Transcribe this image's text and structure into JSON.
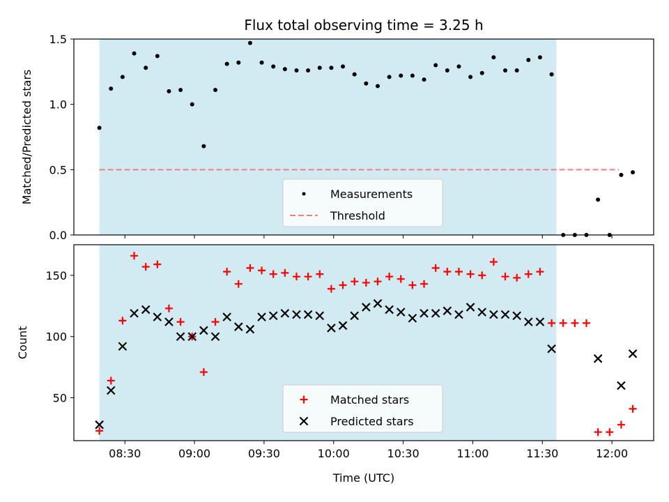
{
  "chart_data": {
    "title": "Flux total observing time = 3.25 h",
    "xlabel": "Time (UTC)",
    "x_ticks": [
      "08:30",
      "09:00",
      "09:30",
      "10:00",
      "10:30",
      "11:00",
      "11:30",
      "12:00"
    ],
    "x_tick_minutes": [
      510,
      540,
      570,
      600,
      630,
      660,
      690,
      720
    ],
    "xlim_minutes": [
      488,
      738
    ],
    "observing_window_minutes": [
      499,
      696
    ],
    "shade_color": "#add8e6",
    "panels": [
      {
        "type": "scatter",
        "ylabel": "Matched/Predicted stars",
        "ylim": [
          0,
          1.5
        ],
        "y_ticks": [
          "0.0",
          "0.5",
          "1.0",
          "1.5"
        ],
        "y_tick_values": [
          0,
          0.5,
          1.0,
          1.5
        ],
        "threshold": {
          "value": 0.5,
          "x_range_minutes": [
            499,
            723
          ],
          "color": "#f08080"
        },
        "legend": {
          "placement": "lower-center",
          "items": [
            "Measurements",
            "Threshold"
          ]
        },
        "series": [
          {
            "name": "Measurements",
            "marker": "dot",
            "color": "#000000",
            "points": [
              [
                499,
                0.82
              ],
              [
                504,
                1.12
              ],
              [
                509,
                1.21
              ],
              [
                514,
                1.39
              ],
              [
                519,
                1.28
              ],
              [
                524,
                1.37
              ],
              [
                529,
                1.1
              ],
              [
                534,
                1.11
              ],
              [
                539,
                1.0
              ],
              [
                544,
                0.68
              ],
              [
                549,
                1.11
              ],
              [
                554,
                1.31
              ],
              [
                559,
                1.32
              ],
              [
                564,
                1.47
              ],
              [
                569,
                1.32
              ],
              [
                574,
                1.29
              ],
              [
                579,
                1.27
              ],
              [
                584,
                1.26
              ],
              [
                589,
                1.26
              ],
              [
                594,
                1.28
              ],
              [
                599,
                1.28
              ],
              [
                604,
                1.29
              ],
              [
                609,
                1.23
              ],
              [
                614,
                1.16
              ],
              [
                619,
                1.14
              ],
              [
                624,
                1.21
              ],
              [
                629,
                1.22
              ],
              [
                634,
                1.22
              ],
              [
                639,
                1.19
              ],
              [
                644,
                1.3
              ],
              [
                649,
                1.26
              ],
              [
                654,
                1.29
              ],
              [
                659,
                1.21
              ],
              [
                664,
                1.24
              ],
              [
                669,
                1.36
              ],
              [
                674,
                1.26
              ],
              [
                679,
                1.26
              ],
              [
                684,
                1.34
              ],
              [
                689,
                1.36
              ],
              [
                694,
                1.23
              ],
              [
                699,
                0.0
              ],
              [
                704,
                0.0
              ],
              [
                709,
                0.0
              ],
              [
                714,
                0.27
              ],
              [
                719,
                0.0
              ],
              [
                724,
                0.46
              ],
              [
                729,
                0.48
              ]
            ]
          }
        ]
      },
      {
        "type": "scatter",
        "ylabel": "Count",
        "ylim": [
          15,
          175
        ],
        "y_ticks": [
          "50",
          "100",
          "150"
        ],
        "y_tick_values": [
          50,
          100,
          150
        ],
        "legend": {
          "placement": "lower-center",
          "items": [
            "Matched stars",
            "Predicted stars"
          ]
        },
        "series": [
          {
            "name": "Matched stars",
            "marker": "plus",
            "color": "#ff0000",
            "points": [
              [
                499,
                23
              ],
              [
                504,
                64
              ],
              [
                509,
                113
              ],
              [
                514,
                166
              ],
              [
                519,
                157
              ],
              [
                524,
                159
              ],
              [
                529,
                123
              ],
              [
                534,
                112
              ],
              [
                539,
                100
              ],
              [
                544,
                71
              ],
              [
                549,
                112
              ],
              [
                554,
                153
              ],
              [
                559,
                143
              ],
              [
                564,
                156
              ],
              [
                569,
                154
              ],
              [
                574,
                151
              ],
              [
                579,
                152
              ],
              [
                584,
                149
              ],
              [
                589,
                149
              ],
              [
                594,
                151
              ],
              [
                599,
                139
              ],
              [
                604,
                142
              ],
              [
                609,
                145
              ],
              [
                614,
                144
              ],
              [
                619,
                145
              ],
              [
                624,
                149
              ],
              [
                629,
                147
              ],
              [
                634,
                142
              ],
              [
                639,
                143
              ],
              [
                644,
                156
              ],
              [
                649,
                153
              ],
              [
                654,
                153
              ],
              [
                659,
                151
              ],
              [
                664,
                150
              ],
              [
                669,
                161
              ],
              [
                674,
                149
              ],
              [
                679,
                148
              ],
              [
                684,
                151
              ],
              [
                689,
                153
              ],
              [
                694,
                111
              ],
              [
                699,
                111
              ],
              [
                704,
                111
              ],
              [
                709,
                111
              ],
              [
                714,
                22
              ],
              [
                719,
                22
              ],
              [
                724,
                28
              ],
              [
                729,
                41
              ]
            ]
          },
          {
            "name": "Predicted stars",
            "marker": "x",
            "color": "#000000",
            "points": [
              [
                499,
                28
              ],
              [
                504,
                56
              ],
              [
                509,
                92
              ],
              [
                514,
                119
              ],
              [
                519,
                122
              ],
              [
                524,
                116
              ],
              [
                529,
                112
              ],
              [
                534,
                100
              ],
              [
                539,
                100
              ],
              [
                544,
                105
              ],
              [
                549,
                100
              ],
              [
                554,
                116
              ],
              [
                559,
                108
              ],
              [
                564,
                106
              ],
              [
                569,
                116
              ],
              [
                574,
                117
              ],
              [
                579,
                119
              ],
              [
                584,
                118
              ],
              [
                589,
                118
              ],
              [
                594,
                117
              ],
              [
                599,
                107
              ],
              [
                604,
                109
              ],
              [
                609,
                117
              ],
              [
                614,
                124
              ],
              [
                619,
                127
              ],
              [
                624,
                122
              ],
              [
                629,
                120
              ],
              [
                634,
                115
              ],
              [
                639,
                119
              ],
              [
                644,
                119
              ],
              [
                649,
                121
              ],
              [
                654,
                118
              ],
              [
                659,
                124
              ],
              [
                664,
                120
              ],
              [
                669,
                118
              ],
              [
                674,
                118
              ],
              [
                679,
                117
              ],
              [
                684,
                112
              ],
              [
                689,
                112
              ],
              [
                694,
                90
              ],
              [
                714,
                82
              ],
              [
                724,
                60
              ],
              [
                729,
                86
              ]
            ]
          }
        ]
      }
    ]
  }
}
